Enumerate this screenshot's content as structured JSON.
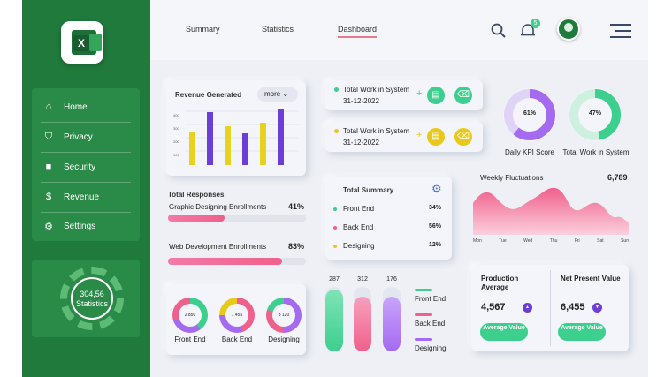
{
  "sidebar": {
    "logo_letter": "X",
    "items": [
      {
        "label": "Home",
        "icon": "home-icon"
      },
      {
        "label": "Privacy",
        "icon": "shield-icon"
      },
      {
        "label": "Security",
        "icon": "lock-icon"
      },
      {
        "label": "Revenue",
        "icon": "dollar-icon"
      },
      {
        "label": "Settings",
        "icon": "gear-icon"
      }
    ],
    "stat": {
      "value": "304,56",
      "label": "Statistics"
    }
  },
  "tabs": [
    {
      "label": "Summary"
    },
    {
      "label": "Statistics"
    },
    {
      "label": "Dashboard"
    }
  ],
  "notification_count": "5",
  "revenue": {
    "title": "Revenue Generated",
    "more_label": "more",
    "y_ticks": [
      "400",
      "300",
      "200",
      "100"
    ]
  },
  "work_cards": [
    {
      "title": "Total Work in System",
      "date": "31-12-2022",
      "dot_color": "#3ccf8e"
    },
    {
      "title": "Total Work in System",
      "date": "31-12-2022",
      "dot_color": "#e8c919"
    }
  ],
  "kpi": [
    {
      "value": "61%",
      "label": "Daily KPI Score",
      "fraction": 0.61,
      "color": "#a46af0"
    },
    {
      "value": "47%",
      "label": "Total Work in System",
      "fraction": 0.47,
      "color": "#3ccf8e"
    }
  ],
  "responses": {
    "title": "Total Responses",
    "items": [
      {
        "label": "Graphic Designing Enrollments",
        "percent": "41%",
        "fraction": 0.41
      },
      {
        "label": "Web Development Enrollments",
        "percent": "83%",
        "fraction": 0.83
      }
    ]
  },
  "summary": {
    "title": "Total Summary",
    "rows": [
      {
        "label": "Front End",
        "value": "34%",
        "color": "#3ccf8e"
      },
      {
        "label": "Back End",
        "value": "56%",
        "color": "#f0608c"
      },
      {
        "label": "Designing",
        "value": "12%",
        "color": "#e8c919"
      }
    ]
  },
  "weekly": {
    "title": "Weekly Fluctuations",
    "value": "6,789",
    "days": [
      "Mon",
      "Tue",
      "Wed",
      "Thu",
      "Fri",
      "Sat",
      "Sun"
    ]
  },
  "donuts": [
    {
      "value": "2 850",
      "label": "Front End"
    },
    {
      "value": "1 455",
      "label": "Back End"
    },
    {
      "value": "3 120",
      "label": "Designing"
    }
  ],
  "tube_values": [
    "287",
    "312",
    "176"
  ],
  "tube_legend": [
    "Front End",
    "Back End",
    "Designing"
  ],
  "metrics": [
    {
      "title": "Production Average",
      "value": "4,567",
      "arrow": "▲",
      "button": "Average Value"
    },
    {
      "title": "Net Present Value",
      "value": "6,455",
      "arrow": "▼",
      "button": "Average Value"
    }
  ]
}
